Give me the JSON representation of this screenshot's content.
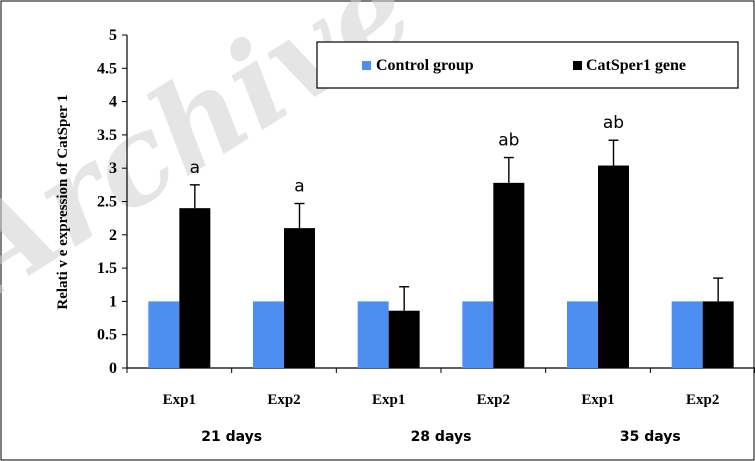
{
  "watermark_text": "Archive",
  "colors": {
    "control": "#4d8ff0",
    "catsper": "#000000",
    "axis": "#000000",
    "watermark": "#d0d0d0"
  },
  "chart_data": {
    "type": "bar",
    "ylabel": "Relati v e expression of CatSper 1",
    "ylim": [
      0,
      5
    ],
    "yticks": [
      "0",
      "0.5",
      "1",
      "1.5",
      "2",
      "2.5",
      "3",
      "3.5",
      "4",
      "4.5",
      "5"
    ],
    "grid": false,
    "legend_position": "top-right",
    "categories": [
      "Exp1",
      "Exp2",
      "Exp1",
      "Exp2",
      "Exp1",
      "Exp2"
    ],
    "groups": [
      {
        "label": "21 days",
        "categories": [
          0,
          1
        ]
      },
      {
        "label": "28 days",
        "categories": [
          2,
          3
        ]
      },
      {
        "label": "35 days",
        "categories": [
          4,
          5
        ]
      }
    ],
    "series": [
      {
        "name": "Control group",
        "values": [
          1,
          1,
          1,
          1,
          1,
          1
        ],
        "errors": [
          0,
          0,
          0,
          0,
          0,
          0
        ]
      },
      {
        "name": "CatSper1 gene",
        "values": [
          2.4,
          2.1,
          0.86,
          2.78,
          3.04,
          1.0
        ],
        "errors": [
          0.35,
          0.37,
          0.36,
          0.38,
          0.38,
          0.35
        ]
      }
    ],
    "annotations": [
      "a",
      "a",
      "",
      "ab",
      "ab",
      ""
    ]
  }
}
